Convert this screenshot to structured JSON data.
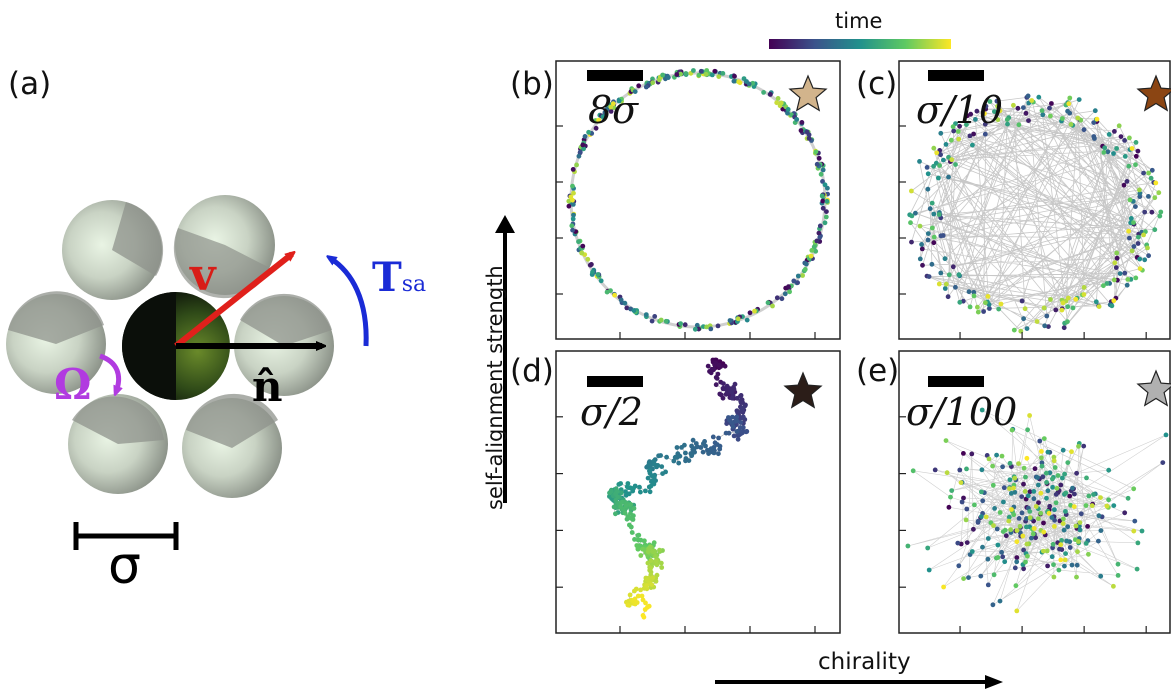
{
  "panel_a": {
    "label": "(a)",
    "symbols": {
      "velocity": "v",
      "torque": "T",
      "torque_sub": "sa",
      "omega": "Ω",
      "orientation": "n̂",
      "diameter": "σ"
    }
  },
  "panels": [
    {
      "id": "b",
      "label": "(b)",
      "scale": "8σ",
      "star_color": "#d2b48c",
      "pattern": "ring"
    },
    {
      "id": "c",
      "label": "(c)",
      "scale": "σ/10",
      "star_color": "#8b4513",
      "pattern": "noisy-ring"
    },
    {
      "id": "d",
      "label": "(d)",
      "scale": "σ/2",
      "star_color": "#2b1d18",
      "pattern": "walk"
    },
    {
      "id": "e",
      "label": "(e)",
      "scale": "σ/100",
      "star_color": "#b0b0b0",
      "pattern": "cloud"
    }
  ],
  "colorbar": {
    "label": "time",
    "colors": [
      "#440154",
      "#3b528b",
      "#21918c",
      "#5ec962",
      "#fde725"
    ]
  },
  "axes": {
    "y_label": "self-alignment strength",
    "x_label": "chirality"
  }
}
